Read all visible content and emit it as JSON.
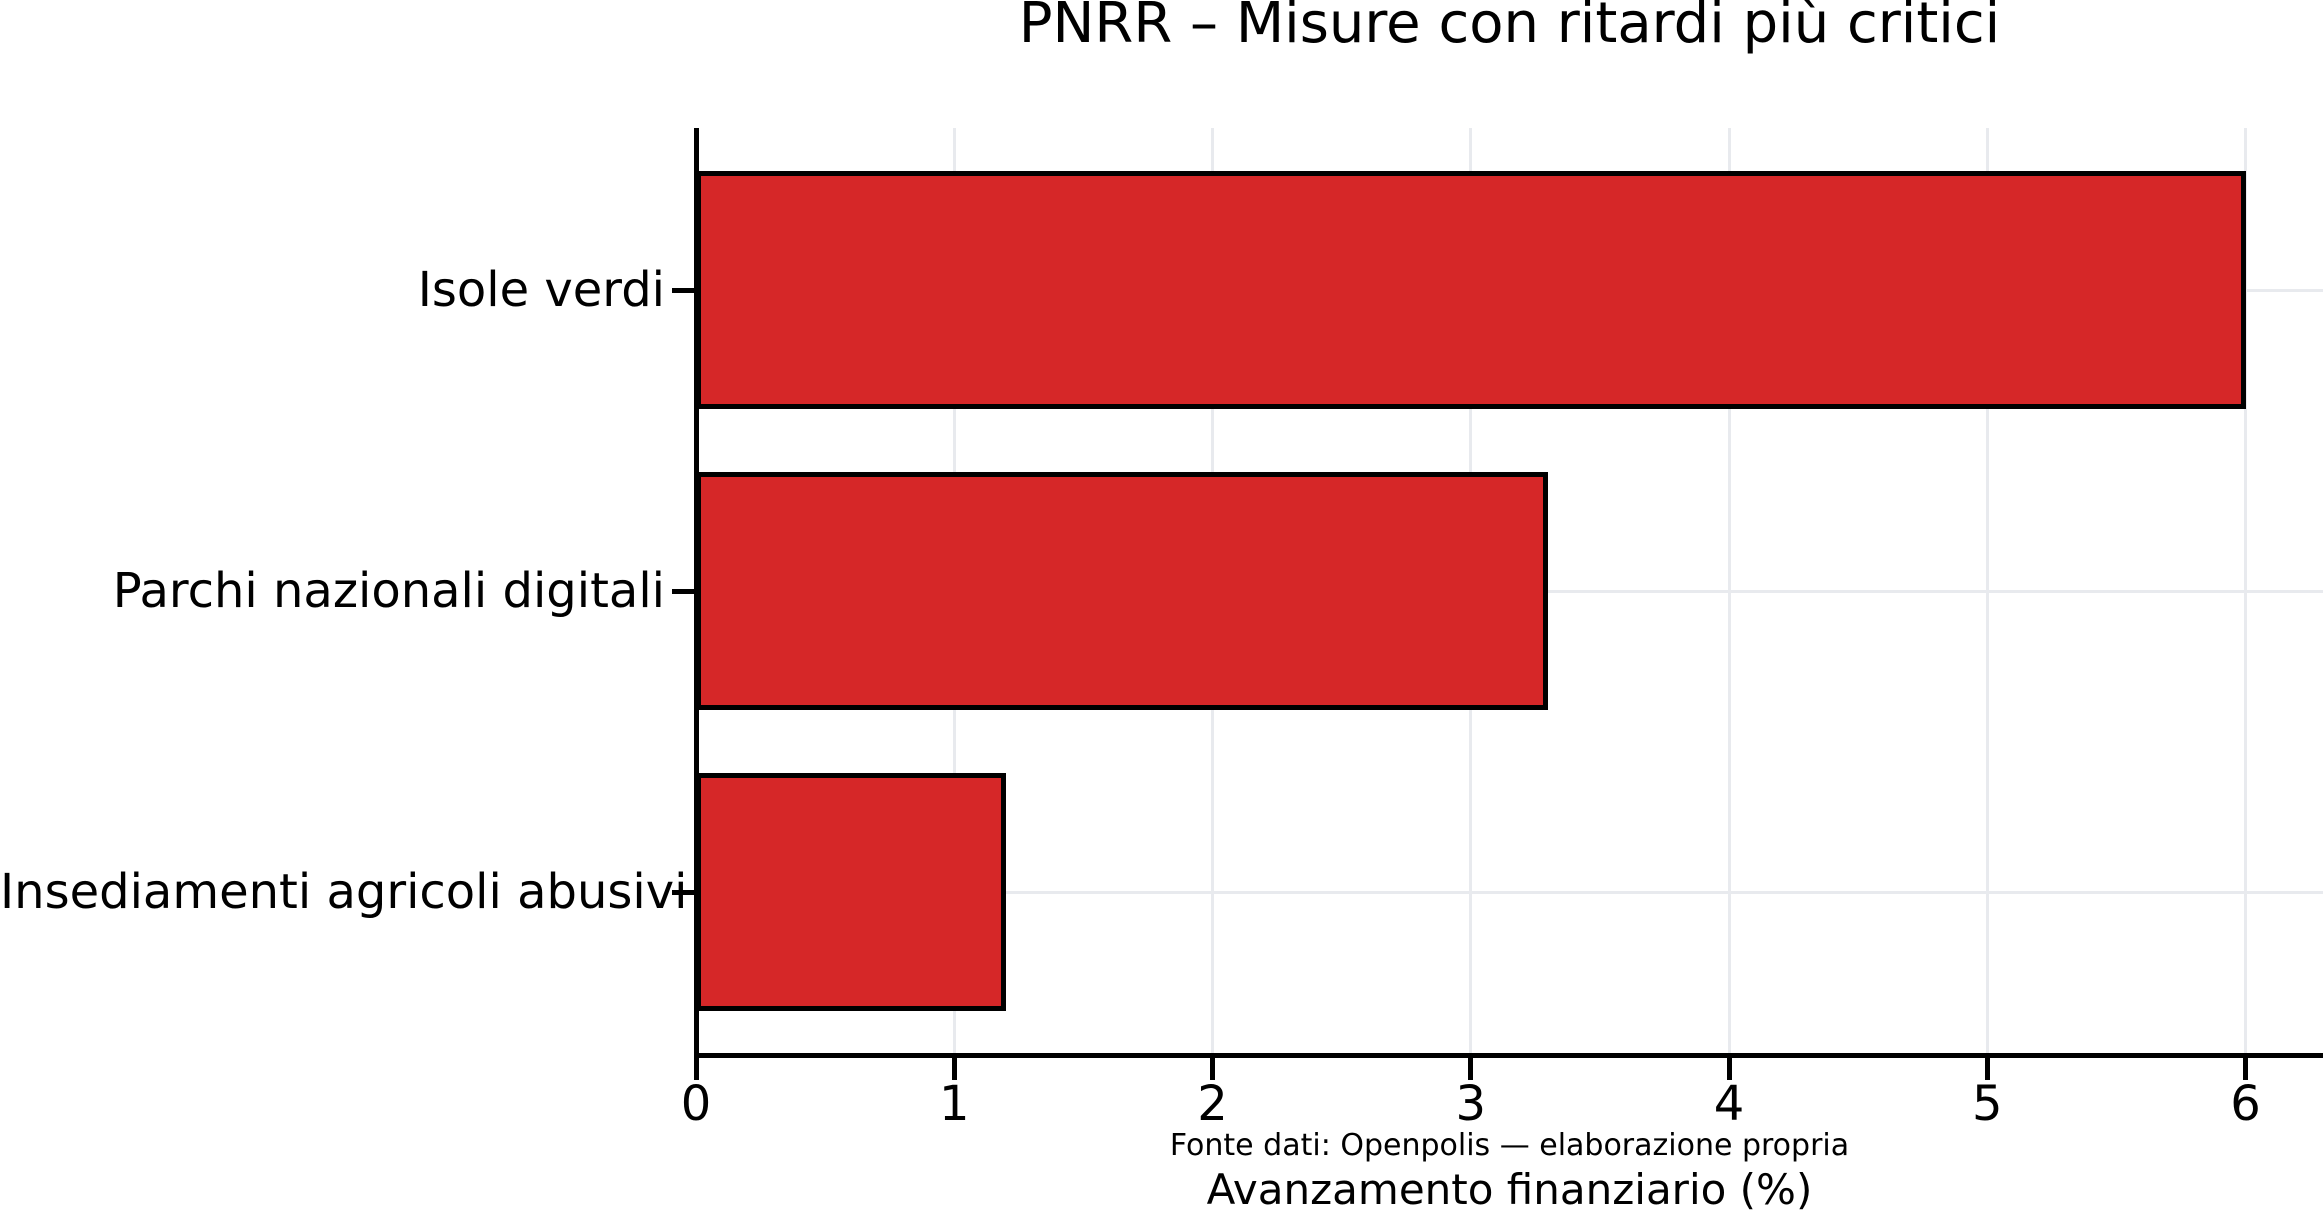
{
  "chart_data": {
    "type": "bar",
    "orientation": "horizontal",
    "title": "PNRR – Misure con ritardi più critici",
    "categories": [
      "Isole verdi",
      "Parchi nazionali digitali",
      "Insediamenti agricoli abusivi"
    ],
    "values": [
      6.0,
      3.3,
      1.2
    ],
    "xlabel": "Avanzamento finanziario (%)",
    "caption": "Fonte dati: Openpolis — elaborazione propria",
    "xticks": [
      0,
      1,
      2,
      3,
      4,
      5,
      6
    ],
    "xlim": [
      0,
      6.3
    ],
    "grid": true,
    "legend": false,
    "colors": {
      "bar_fill": "#d62728",
      "bar_edge": "#000000",
      "grid": "#e8eaee",
      "text": "#000000",
      "background": "#ffffff"
    }
  }
}
